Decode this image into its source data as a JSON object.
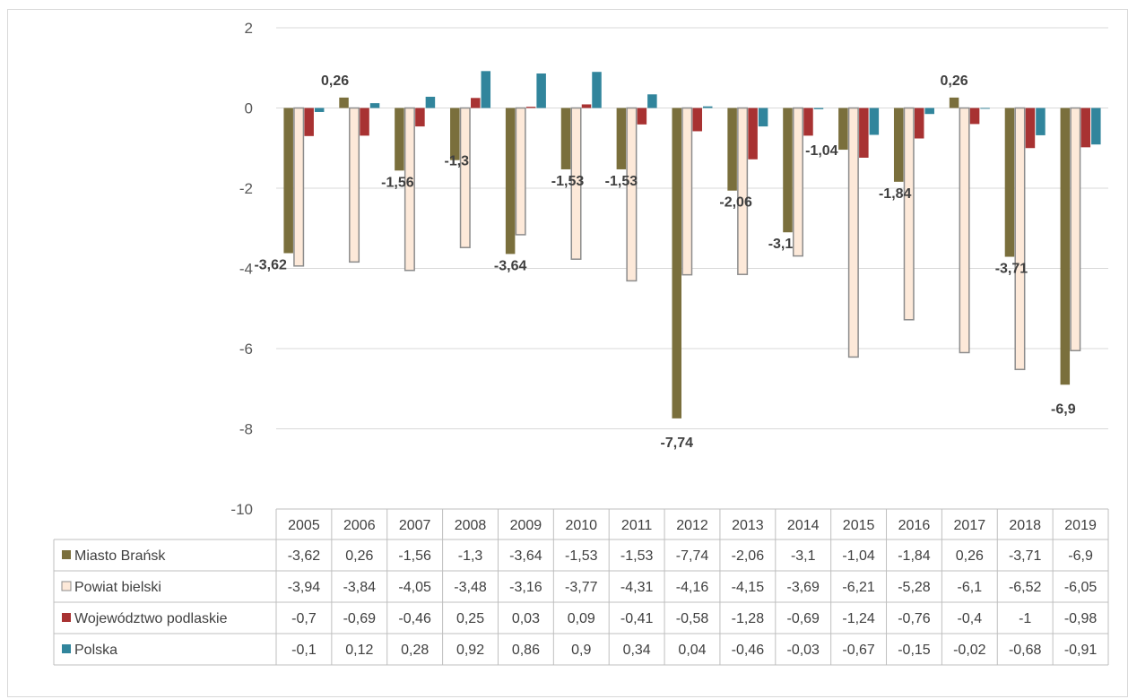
{
  "chart_data": {
    "type": "bar",
    "categories": [
      "2005",
      "2006",
      "2007",
      "2008",
      "2009",
      "2010",
      "2011",
      "2012",
      "2013",
      "2014",
      "2015",
      "2016",
      "2017",
      "2018",
      "2019"
    ],
    "ylim": [
      -10,
      2
    ],
    "yticks": [
      2,
      0,
      -2,
      -4,
      -6,
      -8,
      -10
    ],
    "grid": true,
    "legend": "data-table",
    "series": [
      {
        "name": "Miasto Brańsk",
        "color": "#7a6f3c",
        "values": [
          -3.62,
          0.26,
          -1.56,
          -1.3,
          -3.64,
          -1.53,
          -1.53,
          -7.74,
          -2.06,
          -3.1,
          -1.04,
          -1.84,
          0.26,
          -3.71,
          -6.9
        ],
        "display": [
          "-3,62",
          "0,26",
          "-1,56",
          "-1,3",
          "-3,64",
          "-1,53",
          "-1,53",
          "-7,74",
          "-2,06",
          "-3,1",
          "-1,04",
          "-1,84",
          "0,26",
          "-3,71",
          "-6,9"
        ]
      },
      {
        "name": "Powiat bielski",
        "color": "#fde9d9",
        "stroke": "#8c8c8c",
        "values": [
          -3.94,
          -3.84,
          -4.05,
          -3.48,
          -3.16,
          -3.77,
          -4.31,
          -4.16,
          -4.15,
          -3.69,
          -6.21,
          -5.28,
          -6.1,
          -6.52,
          -6.05
        ],
        "display": [
          "-3,94",
          "-3,84",
          "-4,05",
          "-3,48",
          "-3,16",
          "-3,77",
          "-4,31",
          "-4,16",
          "-4,15",
          "-3,69",
          "-6,21",
          "-5,28",
          "-6,1",
          "-6,52",
          "-6,05"
        ]
      },
      {
        "name": "Województwo podlaskie",
        "color": "#a83232",
        "values": [
          -0.7,
          -0.69,
          -0.46,
          0.25,
          0.03,
          0.09,
          -0.41,
          -0.58,
          -1.28,
          -0.69,
          -1.24,
          -0.76,
          -0.4,
          -1,
          -0.98
        ],
        "display": [
          "-0,7",
          "-0,69",
          "-0,46",
          "0,25",
          "0,03",
          "0,09",
          "-0,41",
          "-0,58",
          "-1,28",
          "-0,69",
          "-1,24",
          "-0,76",
          "-0,4",
          "-1",
          "-0,98"
        ]
      },
      {
        "name": "Polska",
        "color": "#31859c",
        "values": [
          -0.1,
          0.12,
          0.28,
          0.92,
          0.86,
          0.9,
          0.34,
          0.04,
          -0.46,
          -0.03,
          -0.67,
          -0.15,
          -0.02,
          -0.68,
          -0.91
        ],
        "display": [
          "-0,1",
          "0,12",
          "0,28",
          "0,92",
          "0,86",
          "0,9",
          "0,34",
          "0,04",
          "-0,46",
          "-0,03",
          "-0,67",
          "-0,15",
          "-0,02",
          "-0,68",
          "-0,91"
        ]
      }
    ],
    "data_labels_series": "Miasto Brańsk"
  }
}
